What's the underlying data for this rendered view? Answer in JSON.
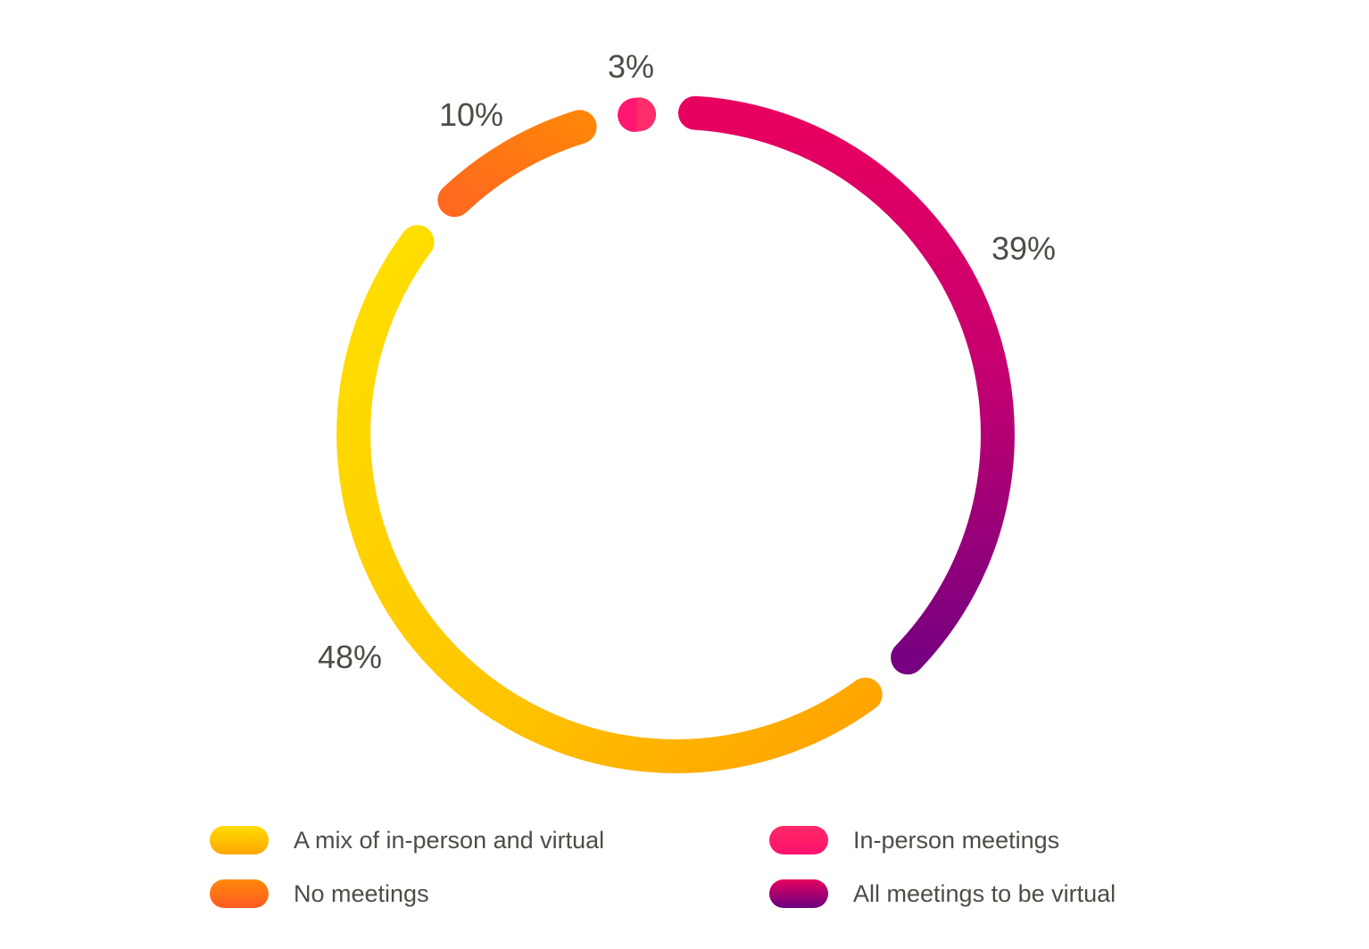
{
  "chart_data": {
    "type": "pie",
    "variant": "donut-ring",
    "title": "",
    "categories": [
      "All meetings to be virtual",
      "A mix of in-person and virtual",
      "No meetings",
      "In-person meetings"
    ],
    "values": [
      39,
      48,
      10,
      3
    ],
    "unit": "%",
    "labels": [
      "39%",
      "48%",
      "10%",
      "3%"
    ],
    "legend_position": "bottom",
    "series": [
      {
        "name": "All meetings to be virtual",
        "value": 39,
        "label": "39%",
        "gradient": [
          "#e8005f",
          "#7a0080"
        ]
      },
      {
        "name": "A mix of in-person and virtual",
        "value": 48,
        "label": "48%",
        "gradient": [
          "#ffa200",
          "#ffdd00"
        ]
      },
      {
        "name": "No meetings",
        "value": 10,
        "label": "10%",
        "gradient": [
          "#ff6a1f",
          "#ff8508"
        ]
      },
      {
        "name": "In-person meetings",
        "value": 3,
        "label": "3%",
        "gradient": [
          "#ff1a6a",
          "#ff3377"
        ]
      }
    ]
  },
  "labels": {
    "virtual": "39%",
    "mix": "48%",
    "none": "10%",
    "inperson": "3%"
  },
  "legend": [
    {
      "label": "A mix of in-person and virtual",
      "colors": [
        "#ffdd00",
        "#ffa500"
      ]
    },
    {
      "label": "No meetings",
      "colors": [
        "#ff8a0a",
        "#ff5a22"
      ]
    },
    {
      "label": "In-person meetings",
      "colors": [
        "#ff2a66",
        "#ff1070"
      ]
    },
    {
      "label": "All meetings to be virtual",
      "colors": [
        "#e8005f",
        "#6a0080"
      ]
    }
  ]
}
